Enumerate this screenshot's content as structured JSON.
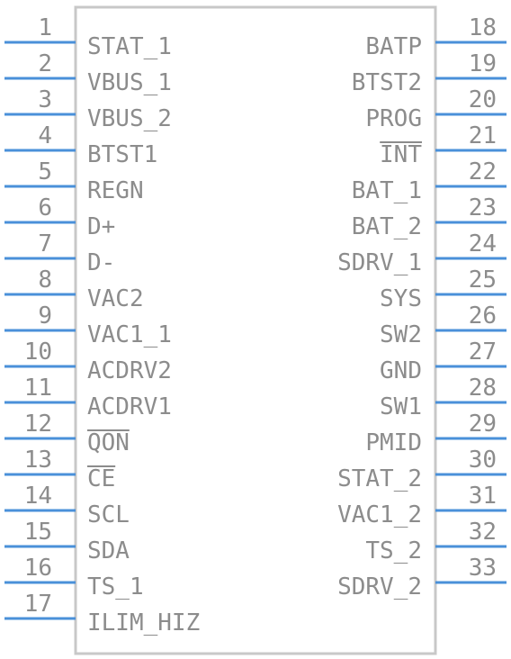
{
  "component": {
    "body_color": "#c8c8c8",
    "pin_color": "#4a90d9",
    "text_color": "#8c8c8c",
    "left_pins": [
      {
        "number": "1",
        "name": "STAT_1"
      },
      {
        "number": "2",
        "name": "VBUS_1"
      },
      {
        "number": "3",
        "name": "VBUS_2"
      },
      {
        "number": "4",
        "name": "BTST1"
      },
      {
        "number": "5",
        "name": "REGN"
      },
      {
        "number": "6",
        "name": "D+"
      },
      {
        "number": "7",
        "name": "D-"
      },
      {
        "number": "8",
        "name": "VAC2"
      },
      {
        "number": "9",
        "name": "VAC1_1"
      },
      {
        "number": "10",
        "name": "ACDRV2"
      },
      {
        "number": "11",
        "name": "ACDRV1"
      },
      {
        "number": "12",
        "name": "QON",
        "active_low": true
      },
      {
        "number": "13",
        "name": "CE",
        "active_low": true
      },
      {
        "number": "14",
        "name": "SCL"
      },
      {
        "number": "15",
        "name": "SDA"
      },
      {
        "number": "16",
        "name": "TS_1"
      },
      {
        "number": "17",
        "name": "ILIM_HIZ"
      }
    ],
    "right_pins": [
      {
        "number": "18",
        "name": "BATP"
      },
      {
        "number": "19",
        "name": "BTST2"
      },
      {
        "number": "20",
        "name": "PROG"
      },
      {
        "number": "21",
        "name": "INT",
        "active_low": true
      },
      {
        "number": "22",
        "name": "BAT_1"
      },
      {
        "number": "23",
        "name": "BAT_2"
      },
      {
        "number": "24",
        "name": "SDRV_1"
      },
      {
        "number": "25",
        "name": "SYS"
      },
      {
        "number": "26",
        "name": "SW2"
      },
      {
        "number": "27",
        "name": "GND"
      },
      {
        "number": "28",
        "name": "SW1"
      },
      {
        "number": "29",
        "name": "PMID"
      },
      {
        "number": "30",
        "name": "STAT_2"
      },
      {
        "number": "31",
        "name": "VAC1_2"
      },
      {
        "number": "32",
        "name": "TS_2"
      },
      {
        "number": "33",
        "name": "SDRV_2"
      }
    ]
  }
}
